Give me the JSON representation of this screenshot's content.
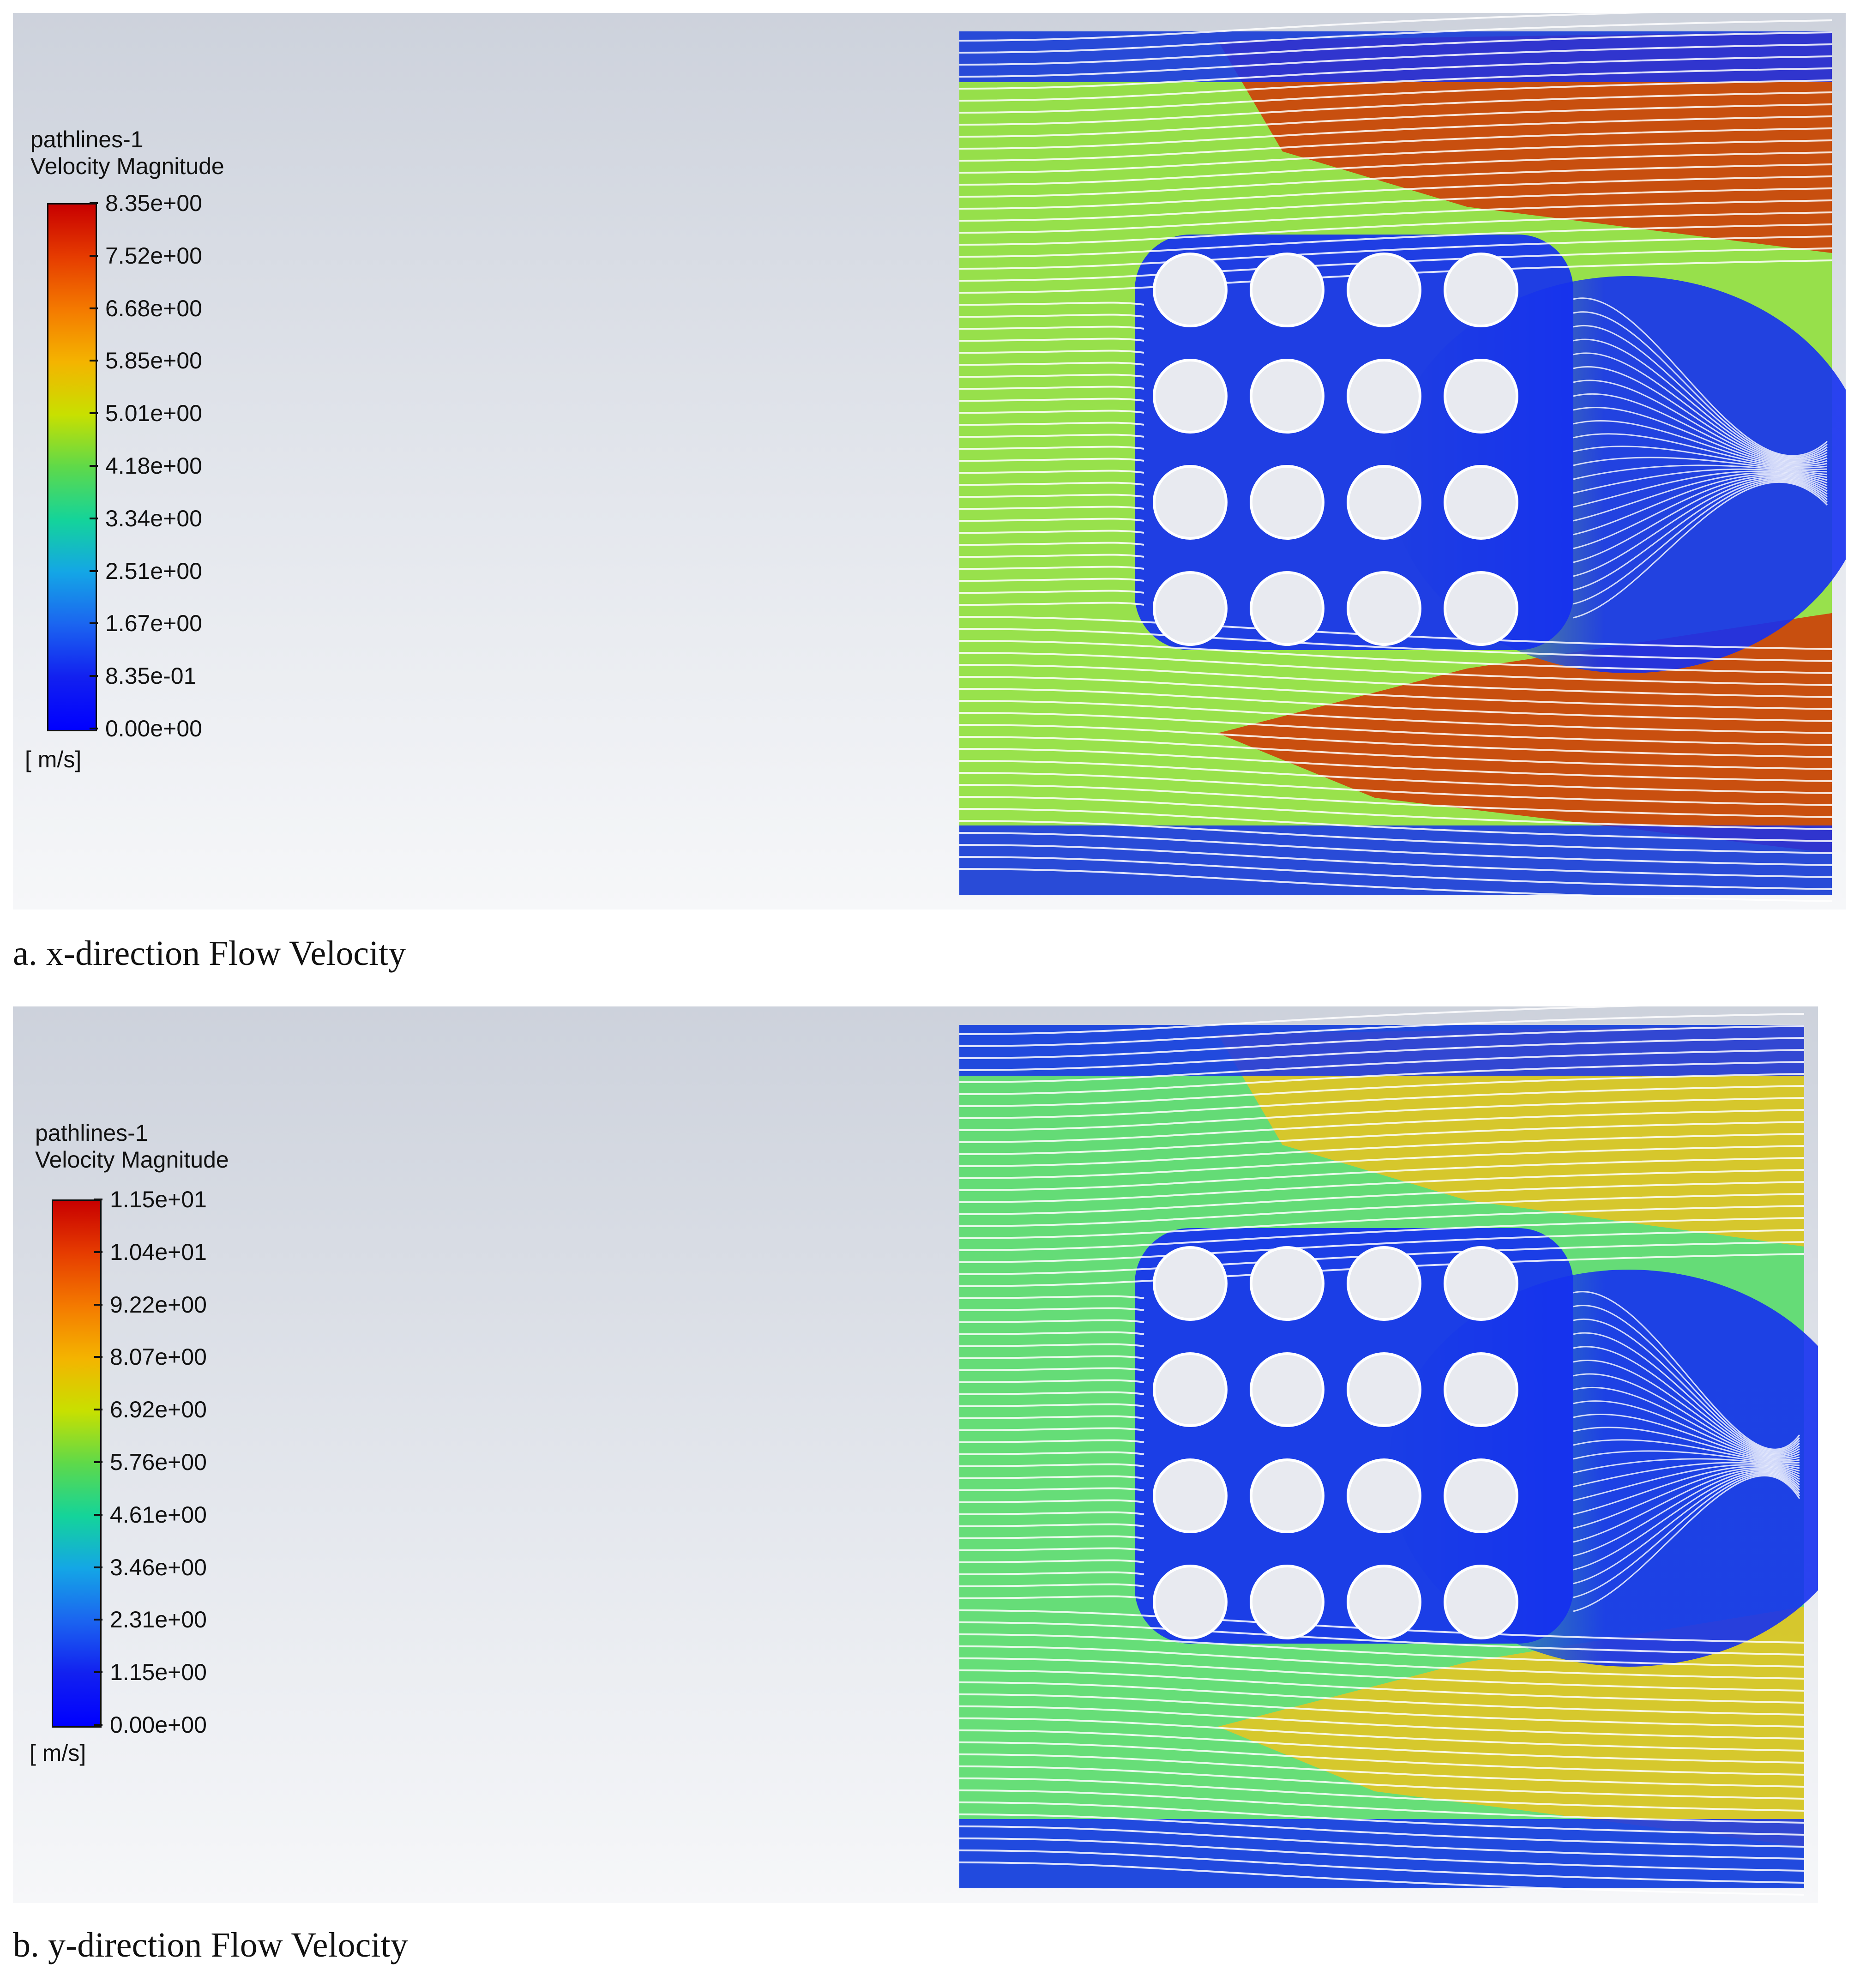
{
  "panels": [
    {
      "legend_title": "pathlines-1\nVelocity Magnitude",
      "unit": "[ m/s]",
      "ticks": [
        "8.35e+00",
        "7.52e+00",
        "6.68e+00",
        "5.85e+00",
        "5.01e+00",
        "4.18e+00",
        "3.34e+00",
        "2.51e+00",
        "1.67e+00",
        "8.35e-01",
        "0.00e+00"
      ],
      "caption": "a. x-direction Flow Velocity",
      "colors": {
        "bg": "#c8ccd6",
        "fast": "#d42a00",
        "mid": "#8fe03a",
        "slow": "#1530f0"
      }
    },
    {
      "legend_title": "pathlines-1\nVelocity Magnitude",
      "unit": "[ m/s]",
      "ticks": [
        "1.15e+01",
        "1.04e+01",
        "9.22e+00",
        "8.07e+00",
        "6.92e+00",
        "5.76e+00",
        "4.61e+00",
        "3.46e+00",
        "2.31e+00",
        "1.15e+00",
        "0.00e+00"
      ],
      "caption": "b. y-direction Flow Velocity",
      "colors": {
        "bg": "#c8ccd6",
        "fast": "#f2c21a",
        "mid": "#58dc6a",
        "slow": "#1530f0"
      }
    }
  ],
  "tube_bank": {
    "rows": 4,
    "columns": 4
  }
}
